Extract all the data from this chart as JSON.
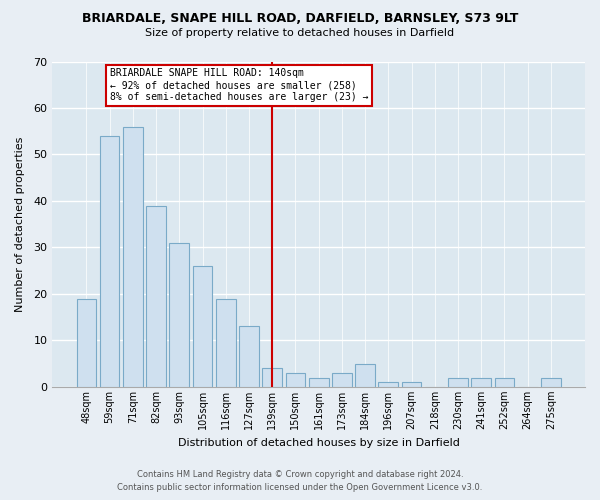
{
  "title": "BRIARDALE, SNAPE HILL ROAD, DARFIELD, BARNSLEY, S73 9LT",
  "subtitle": "Size of property relative to detached houses in Darfield",
  "xlabel": "Distribution of detached houses by size in Darfield",
  "ylabel": "Number of detached properties",
  "bar_labels": [
    "48sqm",
    "59sqm",
    "71sqm",
    "82sqm",
    "93sqm",
    "105sqm",
    "116sqm",
    "127sqm",
    "139sqm",
    "150sqm",
    "161sqm",
    "173sqm",
    "184sqm",
    "196sqm",
    "207sqm",
    "218sqm",
    "230sqm",
    "241sqm",
    "252sqm",
    "264sqm",
    "275sqm"
  ],
  "bar_values": [
    19,
    54,
    56,
    39,
    31,
    26,
    19,
    13,
    4,
    3,
    2,
    3,
    5,
    1,
    1,
    0,
    2,
    2,
    2,
    0,
    2
  ],
  "bar_color": "#cfe0ef",
  "bar_edge_color": "#7aaac8",
  "highlight_index": 8,
  "highlight_line_color": "#cc0000",
  "annotation_line1": "BRIARDALE SNAPE HILL ROAD: 140sqm",
  "annotation_line2": "← 92% of detached houses are smaller (258)",
  "annotation_line3": "8% of semi-detached houses are larger (23) →",
  "annotation_box_color": "#ffffff",
  "annotation_box_edge": "#cc0000",
  "ylim": [
    0,
    70
  ],
  "yticks": [
    0,
    10,
    20,
    30,
    40,
    50,
    60,
    70
  ],
  "footer_line1": "Contains HM Land Registry data © Crown copyright and database right 2024.",
  "footer_line2": "Contains public sector information licensed under the Open Government Licence v3.0.",
  "bg_color": "#e8eef4",
  "plot_bg_color": "#dce8f0"
}
